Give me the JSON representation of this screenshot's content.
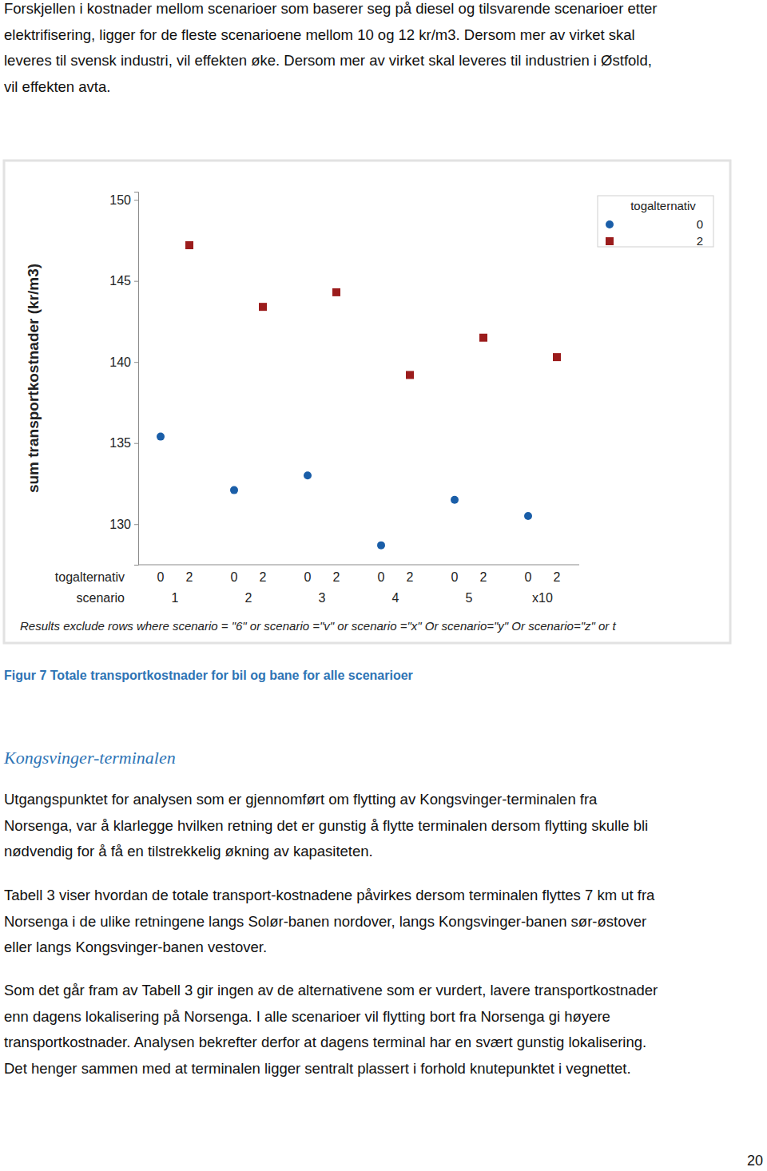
{
  "intro": {
    "lines": [
      "Forskjellen i kostnader mellom scenarioer som baserer seg på diesel og tilsvarende scenarioer etter",
      "elektrifisering, ligger for de fleste scenarioene mellom 10 og 12 kr/m3. Dersom mer av virket skal",
      "leveres til svensk industri, vil effekten øke. Dersom mer av virket skal leveres til industrien i Østfold,",
      "vil effekten avta."
    ]
  },
  "chart_data": {
    "type": "scatter",
    "ylabel": "sum transportkostnader (kr/m3)",
    "x_sublabel": "togalternativ",
    "xlabel": "scenario",
    "categories": [
      "1",
      "2",
      "3",
      "4",
      "5",
      "x10"
    ],
    "series": [
      {
        "name": "0",
        "color": "#1a5ea8",
        "marker": "circle",
        "values": [
          135.4,
          132.1,
          133.0,
          128.7,
          131.5,
          130.5
        ]
      },
      {
        "name": "2",
        "color": "#9b1c1c",
        "marker": "square",
        "values": [
          147.2,
          143.4,
          144.3,
          139.2,
          141.5,
          140.3
        ]
      }
    ],
    "ylim": [
      127.5,
      150.5
    ],
    "yticks": [
      130,
      135,
      140,
      145,
      150
    ],
    "grid": false,
    "legend": "top-right",
    "legend_title": "togalternativ",
    "note": "Results exclude rows where scenario = \"6\" or scenario =\"v\" or scenario =\"x\"  Or scenario=\"y\" Or scenario=\"z\" or t"
  },
  "caption": "Figur 7 Totale transportkostnader for bil og bane for alle scenarioer",
  "section": {
    "heading": "Kongsvinger-terminalen",
    "paragraphs": [
      [
        "Utgangspunktet for analysen som er gjennomført om flytting av Kongsvinger-terminalen fra",
        "Norsenga, var å klarlegge hvilken retning det er gunstig å flytte terminalen dersom flytting skulle bli",
        "nødvendig for å få en tilstrekkelig økning av kapasiteten."
      ],
      [
        "Tabell 3 viser hvordan de totale transport-kostnadene påvirkes dersom terminalen flyttes 7 km ut fra",
        "Norsenga i de ulike retningene langs Solør-banen nordover, langs Kongsvinger-banen sør-østover",
        "eller langs Kongsvinger-banen vestover."
      ],
      [
        "Som det går fram av Tabell 3 gir ingen av de alternativene som er vurdert, lavere transportkostnader",
        "enn dagens lokalisering på Norsenga. I alle scenarioer vil flytting bort fra Norsenga gi høyere",
        "transportkostnader. Analysen bekrefter derfor at dagens terminal har en svært gunstig lokalisering.",
        "Det henger sammen med at terminalen ligger sentralt plassert i forhold knutepunktet i vegnettet."
      ]
    ]
  },
  "page_number": "20"
}
